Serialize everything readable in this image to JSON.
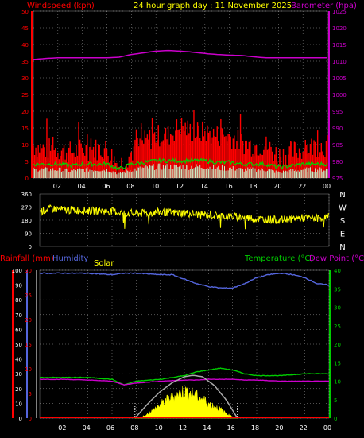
{
  "colors": {
    "background": "#000000",
    "wind": "#ff0000",
    "gust": "#ff0000",
    "avg_wind": "#00d000",
    "baro": "#cc00cc",
    "direction": "#ffff00",
    "rain": "#ff0000",
    "humidity": "#5566dd",
    "solar": "#ffff00",
    "solar_max": "#aaaaaa",
    "temperature": "#00cc00",
    "dewpoint": "#cc00cc",
    "x_axis_text": "#ffffff",
    "grid": "#cccccc"
  },
  "x_tick_labels": [
    "02",
    "04",
    "06",
    "08",
    "10",
    "12",
    "14",
    "16",
    "18",
    "20",
    "22",
    "00"
  ],
  "chart_data": [
    {
      "type": "line",
      "id": "wind_baro",
      "title": "24 hour graph day : 11 November 2025",
      "left_label": "Windspeed (kph)",
      "right_label": "Barometer (hpa)",
      "x_range_hours": [
        0,
        24
      ],
      "y_left_ticks": [
        "0",
        "5",
        "10",
        "15",
        "20",
        "25",
        "30",
        "35",
        "40",
        "45",
        "50"
      ],
      "y_left_range": [
        0,
        50
      ],
      "y_right_ticks": [
        "975",
        "980",
        "985",
        "990",
        "995",
        "1000",
        "1005",
        "1010",
        "1015",
        "1020",
        "1025"
      ],
      "y_right_range": [
        975,
        1025
      ],
      "grid": true,
      "series": [
        {
          "name": "Windspeed",
          "axis": "left",
          "style": "gust-band",
          "x": [
            0,
            1,
            2,
            3,
            4,
            5,
            6,
            7,
            8,
            9,
            10,
            11,
            12,
            13,
            14,
            15,
            16,
            17,
            18,
            19,
            20,
            21,
            22,
            23,
            24
          ],
          "values": [
            9,
            8,
            8,
            7,
            8,
            8,
            8,
            3,
            7,
            10,
            12,
            12,
            15,
            13,
            13,
            12,
            12,
            10,
            9,
            9,
            6,
            7,
            8,
            9,
            9
          ]
        },
        {
          "name": "Barometer",
          "axis": "right",
          "x": [
            0,
            1,
            2,
            3,
            4,
            5,
            6,
            7,
            8,
            9,
            10,
            11,
            12,
            13,
            14,
            15,
            16,
            17,
            18,
            19,
            20,
            21,
            22,
            23,
            24
          ],
          "values": [
            1010.5,
            1010.8,
            1011.0,
            1011.0,
            1011.0,
            1011.0,
            1011.0,
            1011.2,
            1012.0,
            1012.5,
            1013.0,
            1013.2,
            1013.0,
            1012.7,
            1012.3,
            1012.0,
            1011.8,
            1011.7,
            1011.3,
            1011.0,
            1011.0,
            1011.0,
            1011.0,
            1011.0,
            1011.0
          ]
        },
        {
          "axis": "left",
          "x": [
            0,
            1,
            2,
            3,
            4,
            5,
            6,
            7,
            8,
            9,
            10,
            11,
            12,
            13,
            14,
            15,
            16,
            17,
            18,
            19,
            20,
            21,
            22,
            23,
            24
          ],
          "values": [
            3,
            3,
            3,
            2.5,
            3,
            3,
            3,
            1.5,
            3,
            3.5,
            4,
            4,
            4,
            4,
            4,
            3.5,
            3.5,
            3,
            3,
            3,
            2,
            2.5,
            3,
            3,
            3
          ]
        }
      ]
    },
    {
      "type": "scatter",
      "id": "direction",
      "y_ticks": [
        "360",
        "270",
        "180",
        "90",
        "0"
      ],
      "compass_labels": [
        "N",
        "W",
        "S",
        "E",
        "N"
      ],
      "y_range": [
        0,
        360
      ],
      "x": [
        0,
        1,
        2,
        3,
        4,
        5,
        6,
        7,
        8,
        9,
        10,
        11,
        12,
        13,
        14,
        15,
        16,
        17,
        18,
        19,
        20,
        21,
        22,
        23,
        24
      ],
      "values": [
        240,
        260,
        250,
        250,
        245,
        245,
        240,
        230,
        225,
        230,
        235,
        230,
        230,
        220,
        215,
        210,
        205,
        200,
        190,
        185,
        180,
        190,
        195,
        195,
        200
      ]
    },
    {
      "type": "line",
      "id": "rain_humidity_temp",
      "labels": {
        "rain": "Rainfall (mm)",
        "humidity": "Humidity",
        "solar": "Solar",
        "temperature": "Temperature (°C)",
        "dewpoint": "Dew Point (°C)"
      },
      "y_left_ticks": [
        "0",
        "10",
        "20",
        "30",
        "40",
        "50",
        "60",
        "70",
        "80",
        "90",
        "100"
      ],
      "y_left_range": [
        0,
        100
      ],
      "y_rain_ticks": [
        "0",
        "5",
        "10",
        "15",
        "20",
        "25",
        "30"
      ],
      "y_rain_range": [
        0,
        30
      ],
      "y_right_ticks": [
        "0",
        "5",
        "10",
        "15",
        "20",
        "25",
        "30",
        "35",
        "40"
      ],
      "y_right_range": [
        0,
        40
      ],
      "grid": true,
      "series": [
        {
          "name": "Humidity",
          "axis": "left",
          "x": [
            0,
            2,
            4,
            6,
            7,
            8,
            10,
            11,
            12,
            13,
            14,
            15,
            16,
            17,
            18,
            19,
            20,
            21,
            22,
            23,
            24
          ],
          "values": [
            98,
            98,
            98,
            97,
            98,
            98,
            97,
            97,
            94,
            91,
            89,
            88,
            88,
            91,
            95,
            97,
            98,
            97,
            95,
            91,
            90
          ]
        },
        {
          "name": "Temperature",
          "axis": "right",
          "x": [
            0,
            2,
            4,
            6,
            7,
            8,
            10,
            12,
            13,
            14,
            15,
            16,
            17,
            18,
            20,
            22,
            24
          ],
          "values": [
            11,
            11,
            11,
            10.5,
            9,
            10,
            10.5,
            11.5,
            12.5,
            13,
            13.5,
            13,
            12,
            11.5,
            11.5,
            12,
            12
          ]
        },
        {
          "name": "Dew Point",
          "axis": "right",
          "x": [
            0,
            2,
            4,
            6,
            7,
            8,
            10,
            12,
            13,
            14,
            15,
            16,
            17,
            18,
            20,
            22,
            24
          ],
          "values": [
            10.5,
            10.5,
            10.3,
            10,
            9,
            9.5,
            10,
            10.3,
            10.3,
            10.5,
            10.5,
            10.5,
            10.3,
            10.3,
            10,
            10,
            10
          ]
        },
        {
          "name": "Solar",
          "axis": "left",
          "x": [
            7.9,
            8.5,
            9,
            9.5,
            10,
            10.5,
            11,
            11.5,
            12,
            12.5,
            13,
            13.5,
            14,
            14.5,
            15,
            15.5,
            16,
            16.4
          ],
          "values": [
            0,
            1,
            3,
            6,
            9,
            12,
            14,
            16,
            18,
            17,
            15,
            13,
            10,
            8,
            6,
            3,
            1,
            0
          ]
        },
        {
          "axis": "left",
          "x": [
            7.9,
            9,
            10,
            11,
            12,
            12.7,
            13.5,
            14.5,
            15.5,
            16.4
          ],
          "values": [
            0,
            10,
            18,
            24,
            28,
            29,
            28,
            22,
            12,
            0
          ]
        },
        {
          "name": "Rainfall",
          "axis": "rain",
          "x": [
            0,
            24
          ],
          "values": [
            0,
            0
          ]
        }
      ]
    }
  ]
}
